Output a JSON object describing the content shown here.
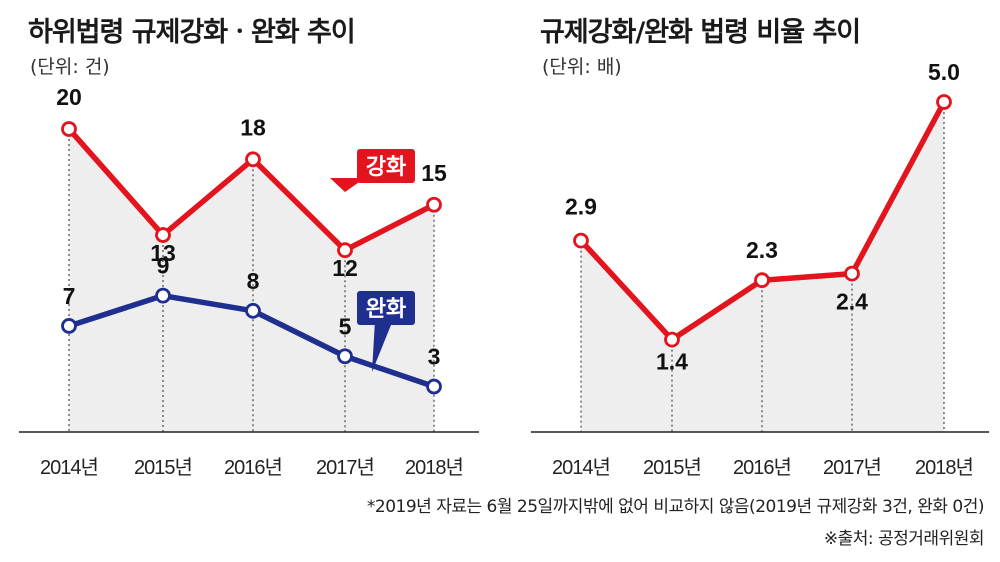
{
  "chart_data": [
    {
      "type": "line",
      "title": "하위법령 규제강화ㆍ완화 추이",
      "unit": "(단위: 건)",
      "categories": [
        "2014년",
        "2015년",
        "2016년",
        "2017년",
        "2018년"
      ],
      "series": [
        {
          "name": "강화",
          "values": [
            20,
            13,
            18,
            12,
            15
          ],
          "color": "#e3141d"
        },
        {
          "name": "완화",
          "values": [
            7,
            9,
            8,
            5,
            3
          ],
          "color": "#1f2f8f"
        }
      ],
      "ylim": [
        0,
        22
      ],
      "grid": true,
      "legend": "inline-callouts"
    },
    {
      "type": "line",
      "title": "규제강화/완화 법령 비율 추이",
      "unit": "(단위: 배)",
      "categories": [
        "2014년",
        "2015년",
        "2016년",
        "2017년",
        "2018년"
      ],
      "series": [
        {
          "name": "",
          "values": [
            2.9,
            1.4,
            2.3,
            2.4,
            5.0
          ],
          "color": "#e3141d"
        }
      ],
      "ylim": [
        0,
        6
      ],
      "grid": true
    }
  ],
  "footnote": "*2019년 자료는 6월 25일까지밖에 없어 비교하지 않음(2019년 규제강화 3건, 완화 0건)",
  "source": "※출처: 공정거래위원회"
}
